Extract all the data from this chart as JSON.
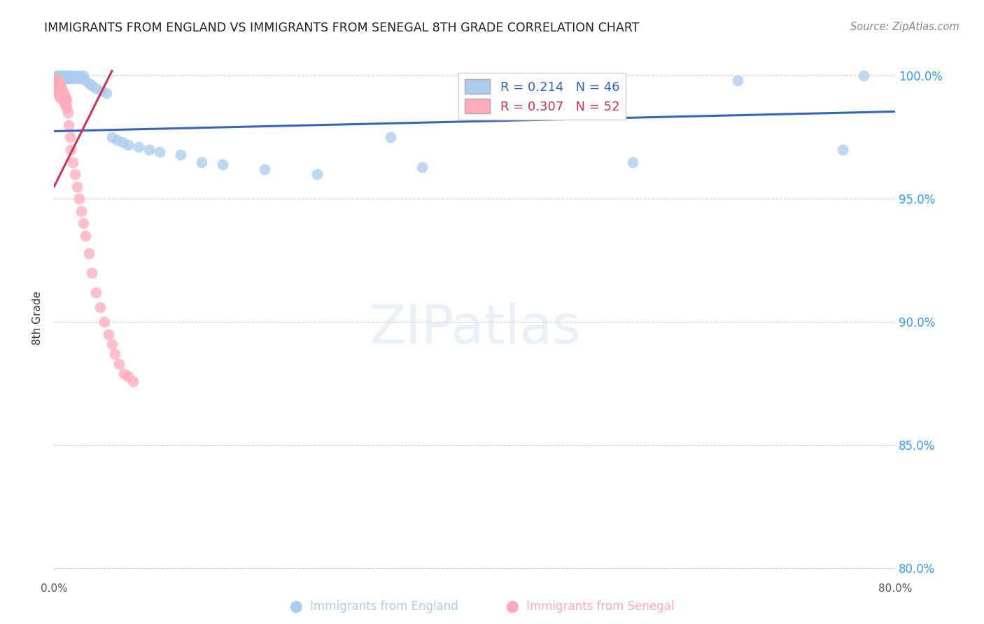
{
  "title": "IMMIGRANTS FROM ENGLAND VS IMMIGRANTS FROM SENEGAL 8TH GRADE CORRELATION CHART",
  "source": "Source: ZipAtlas.com",
  "ylabel": "8th Grade",
  "xlim": [
    0.0,
    0.8
  ],
  "ylim": [
    0.795,
    1.008
  ],
  "xtick_positions": [
    0.0,
    0.1,
    0.2,
    0.3,
    0.4,
    0.5,
    0.6,
    0.7,
    0.8
  ],
  "xtick_labels": [
    "0.0%",
    "",
    "",
    "",
    "",
    "",
    "",
    "",
    "80.0%"
  ],
  "ytick_positions": [
    0.8,
    0.85,
    0.9,
    0.95,
    1.0
  ],
  "ytick_labels": [
    "80.0%",
    "85.0%",
    "90.0%",
    "95.0%",
    "100.0%"
  ],
  "england_color": "#aaccee",
  "senegal_color": "#ffaabb",
  "england_R": 0.214,
  "england_N": 46,
  "senegal_R": 0.307,
  "senegal_N": 52,
  "england_line_color": "#3366bb",
  "senegal_line_color": "#cc3355",
  "england_line_x": [
    0.0,
    0.8
  ],
  "england_line_y": [
    0.9775,
    0.9855
  ],
  "senegal_line_x": [
    0.0,
    0.055
  ],
  "senegal_line_y": [
    0.955,
    1.002
  ],
  "england_x": [
    0.001,
    0.002,
    0.003,
    0.004,
    0.005,
    0.006,
    0.007,
    0.008,
    0.009,
    0.01,
    0.011,
    0.012,
    0.013,
    0.014,
    0.015,
    0.016,
    0.018,
    0.02,
    0.022,
    0.024,
    0.026,
    0.028,
    0.03,
    0.033,
    0.036,
    0.04,
    0.045,
    0.05,
    0.055,
    0.06,
    0.065,
    0.07,
    0.08,
    0.09,
    0.1,
    0.12,
    0.14,
    0.16,
    0.2,
    0.25,
    0.32,
    0.35,
    0.55,
    0.65,
    0.75,
    0.77
  ],
  "england_y": [
    0.999,
    0.999,
    1.0,
    1.0,
    0.999,
    0.999,
    1.0,
    0.999,
    1.0,
    0.999,
    0.999,
    1.0,
    0.999,
    0.999,
    1.0,
    1.0,
    0.999,
    1.0,
    0.999,
    1.0,
    0.999,
    1.0,
    0.998,
    0.997,
    0.996,
    0.995,
    0.994,
    0.993,
    0.975,
    0.974,
    0.973,
    0.972,
    0.971,
    0.97,
    0.969,
    0.968,
    0.965,
    0.964,
    0.962,
    0.96,
    0.975,
    0.963,
    0.965,
    0.998,
    0.97,
    1.0
  ],
  "senegal_x": [
    0.001,
    0.001,
    0.002,
    0.002,
    0.002,
    0.003,
    0.003,
    0.003,
    0.004,
    0.004,
    0.004,
    0.005,
    0.005,
    0.005,
    0.006,
    0.006,
    0.006,
    0.007,
    0.007,
    0.008,
    0.008,
    0.009,
    0.009,
    0.01,
    0.01,
    0.011,
    0.011,
    0.012,
    0.012,
    0.013,
    0.014,
    0.015,
    0.016,
    0.018,
    0.02,
    0.022,
    0.024,
    0.026,
    0.028,
    0.03,
    0.033,
    0.036,
    0.04,
    0.044,
    0.048,
    0.052,
    0.055,
    0.058,
    0.062,
    0.066,
    0.07,
    0.075
  ],
  "senegal_y": [
    0.998,
    0.997,
    0.999,
    0.997,
    0.995,
    0.998,
    0.996,
    0.994,
    0.997,
    0.995,
    0.993,
    0.997,
    0.994,
    0.992,
    0.996,
    0.993,
    0.991,
    0.995,
    0.992,
    0.994,
    0.991,
    0.993,
    0.99,
    0.992,
    0.989,
    0.991,
    0.988,
    0.99,
    0.987,
    0.985,
    0.98,
    0.975,
    0.97,
    0.965,
    0.96,
    0.955,
    0.95,
    0.945,
    0.94,
    0.935,
    0.928,
    0.92,
    0.912,
    0.906,
    0.9,
    0.895,
    0.891,
    0.887,
    0.883,
    0.879,
    0.878,
    0.876
  ]
}
